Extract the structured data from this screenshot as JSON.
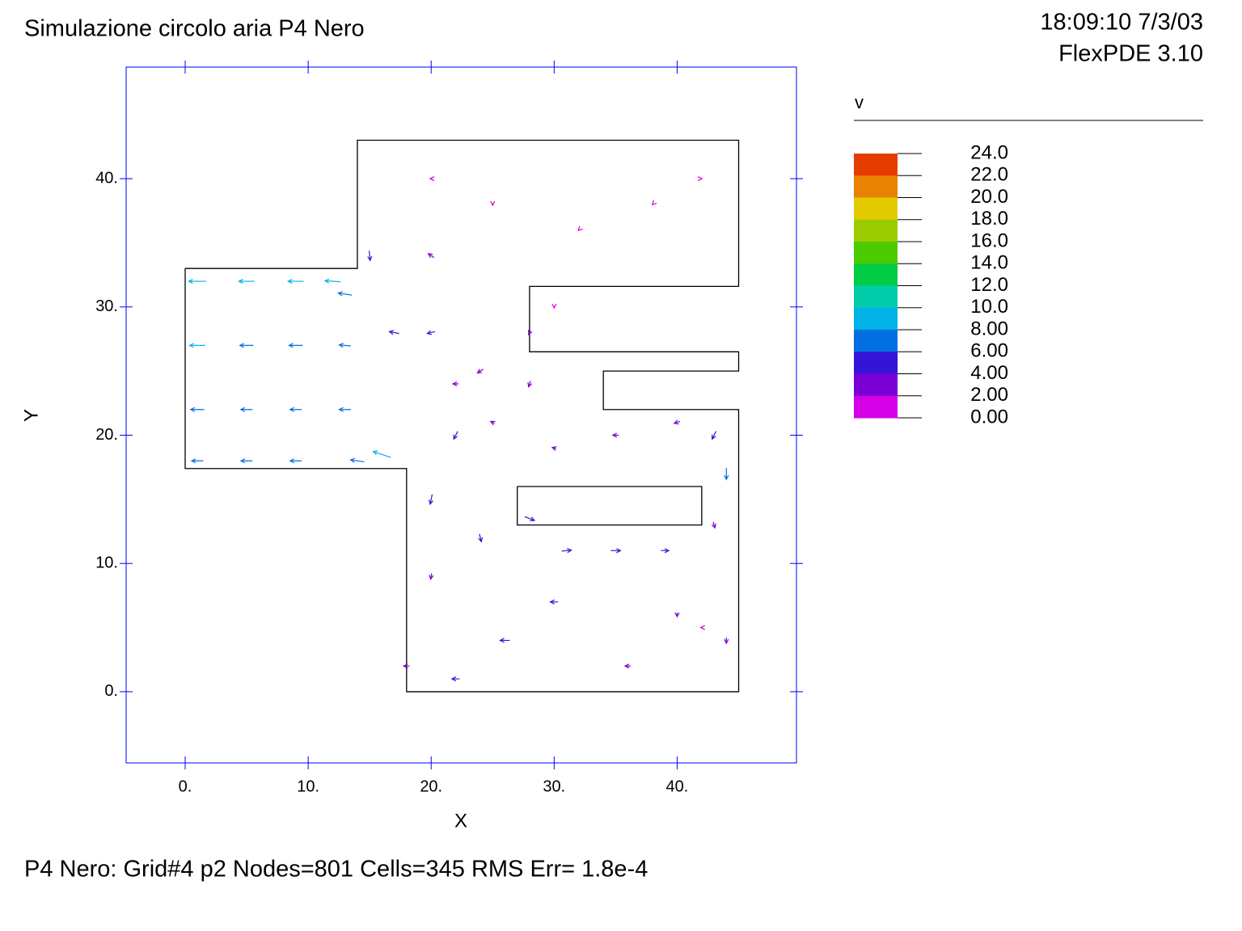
{
  "chart_data": {
    "type": "vector",
    "title": "Simulazione circolo aria P4 Nero",
    "timestamp": "18:09:10 7/3/03",
    "version": "FlexPDE 3.10",
    "xlabel": "X",
    "ylabel": "Y",
    "footer": "P4 Nero:  Grid#4  p2  Nodes=801 Cells=345 RMS Err= 1.8e-4",
    "xlim": [
      -4.8,
      49.7
    ],
    "ylim": [
      -5.55,
      48.7
    ],
    "xticks": [
      {
        "value": 0,
        "label": "0."
      },
      {
        "value": 10,
        "label": "10."
      },
      {
        "value": 20,
        "label": "20."
      },
      {
        "value": 30,
        "label": "30."
      },
      {
        "value": 40,
        "label": "40."
      }
    ],
    "yticks": [
      {
        "value": 0,
        "label": "0."
      },
      {
        "value": 10,
        "label": "10."
      },
      {
        "value": 20,
        "label": "20."
      },
      {
        "value": 30,
        "label": "30."
      },
      {
        "value": 40,
        "label": "40."
      }
    ],
    "outline": {
      "x": [
        0,
        14,
        14,
        45,
        45,
        28,
        28,
        45,
        45,
        34,
        34,
        45,
        45,
        18,
        18,
        0,
        0
      ],
      "y": [
        33,
        33,
        43,
        43,
        31.6,
        31.6,
        26.5,
        26.5,
        25,
        25,
        22,
        22,
        0,
        0,
        17.4,
        17.4,
        33
      ]
    },
    "obstacle": {
      "x": [
        27,
        42,
        42,
        27,
        27
      ],
      "y": [
        16,
        16,
        13,
        13,
        16
      ]
    },
    "vectors": {
      "x": [
        1,
        5,
        9,
        12,
        1,
        5,
        9,
        13,
        1,
        5,
        9,
        13,
        1,
        5,
        9,
        14,
        16,
        15,
        13,
        20,
        24,
        28,
        22,
        20,
        20,
        24,
        28,
        31,
        35,
        39,
        43,
        44,
        43,
        40,
        35,
        30,
        25,
        22,
        28,
        32,
        38,
        42,
        20,
        25,
        30,
        35,
        40,
        44,
        18,
        22,
        26,
        30,
        36,
        42,
        17,
        20
      ],
      "y": [
        32,
        32,
        32,
        32,
        27,
        27,
        27,
        27,
        22,
        22,
        22,
        22,
        18,
        18,
        18,
        18,
        18.5,
        34,
        31,
        28,
        25,
        24,
        20,
        15,
        9,
        12,
        13.5,
        11,
        11,
        11,
        13,
        17,
        20,
        21,
        20,
        19,
        21,
        24,
        28,
        36,
        38,
        40,
        40,
        38,
        30,
        8,
        6,
        4,
        2,
        1,
        4,
        7,
        2,
        5,
        28,
        34
      ],
      "u": [
        -9,
        -8,
        -8,
        -8,
        -8,
        -7,
        -7,
        -6,
        -7,
        -6,
        -6,
        -6,
        -6,
        -6,
        -6,
        -7,
        -9,
        0.5,
        -7,
        -4,
        -3,
        -1,
        -2,
        -1,
        -0.5,
        1,
        5,
        5,
        5,
        4,
        1,
        0,
        -2,
        -3,
        -3,
        -2,
        -2,
        -3,
        -1,
        -0.5,
        -0.3,
        0.2,
        -1,
        0,
        0,
        0,
        0,
        0,
        -3,
        -4,
        -5,
        -4,
        -3,
        -1,
        -5,
        -3
      ],
      "v": [
        0,
        0,
        0,
        0.5,
        0,
        0,
        0,
        0.5,
        0,
        0,
        0,
        0,
        0,
        0,
        0,
        1,
        3,
        -5,
        1,
        -1,
        -2,
        -3,
        -4,
        -5,
        -3,
        -4,
        -2,
        0.5,
        0,
        0,
        -3,
        -6,
        -4,
        -1,
        0,
        0.5,
        1,
        0,
        -2,
        -0.5,
        -0.3,
        0,
        0,
        -1,
        -1,
        0,
        -2,
        -3,
        0,
        0,
        0,
        0,
        0,
        0,
        1,
        2
      ]
    },
    "legend": {
      "title": "v",
      "colors": [
        "#e63c00",
        "#e88200",
        "#e2cc00",
        "#9ccc00",
        "#4ccc00",
        "#00cc44",
        "#00ccaa",
        "#00b2e6",
        "#0070e0",
        "#3414d8",
        "#7a00d6",
        "#d400e6"
      ],
      "ticks": [
        {
          "value": 24,
          "label": "24.0"
        },
        {
          "value": 22,
          "label": "22.0"
        },
        {
          "value": 20,
          "label": "20.0"
        },
        {
          "value": 18,
          "label": "18.0"
        },
        {
          "value": 16,
          "label": "16.0"
        },
        {
          "value": 14,
          "label": "14.0"
        },
        {
          "value": 12,
          "label": "12.0"
        },
        {
          "value": 10,
          "label": "10.0"
        },
        {
          "value": 8,
          "label": "8.00"
        },
        {
          "value": 6,
          "label": "6.00"
        },
        {
          "value": 4,
          "label": "4.00"
        },
        {
          "value": 2,
          "label": "2.00"
        },
        {
          "value": 0,
          "label": "0.00"
        }
      ]
    }
  }
}
